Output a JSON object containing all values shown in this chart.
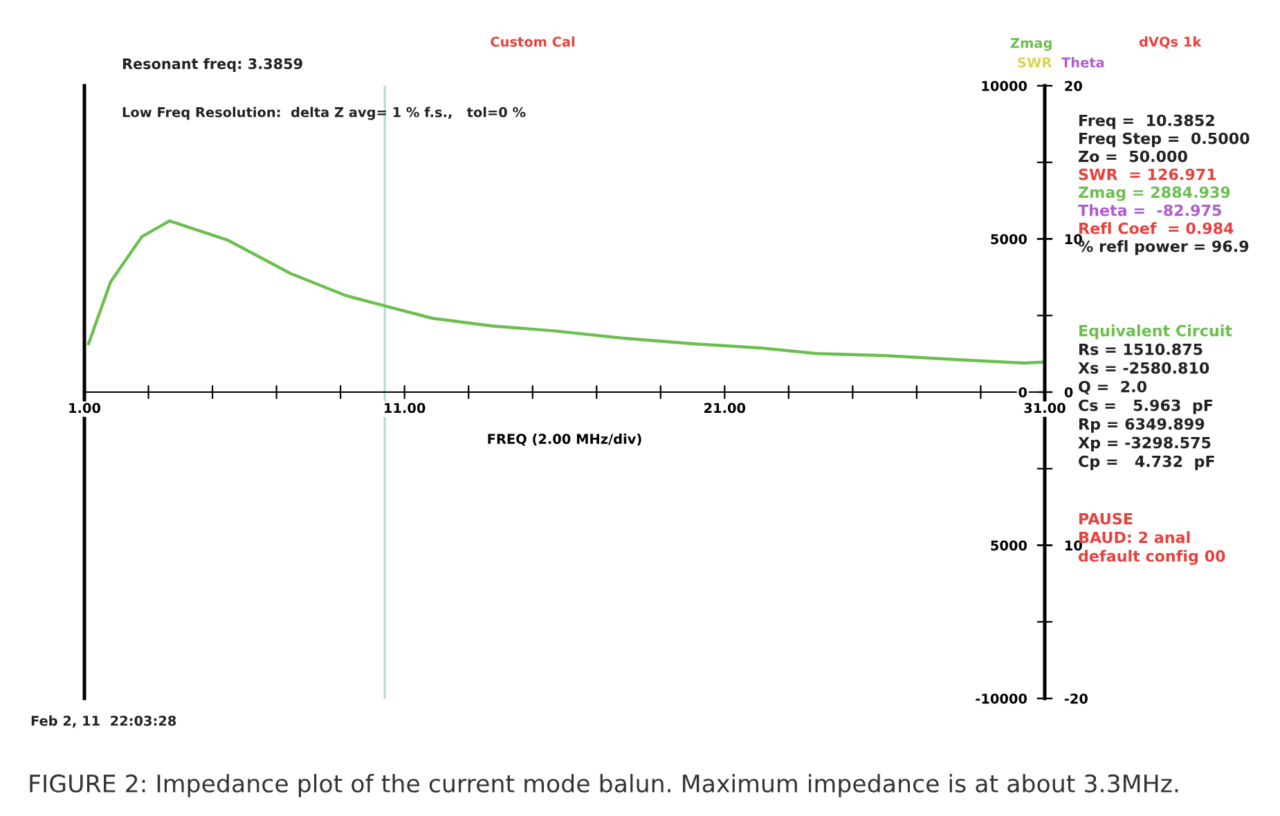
{
  "chart_data": {
    "type": "line",
    "xlabel": "FREQ (2.00 MHz/div)",
    "x": [
      1.13,
      1.82,
      2.79,
      3.66,
      5.5,
      7.44,
      9.17,
      10.47,
      11.87,
      13.71,
      15.66,
      17.82,
      19.98,
      22.14,
      23.87,
      26.03,
      28.63,
      30.36,
      31.0
    ],
    "series": [
      {
        "name": "Zmag",
        "color": "#6cbf4f",
        "values": [
          1580,
          3600,
          5070,
          5590,
          4950,
          3870,
          3150,
          2790,
          2410,
          2160,
          2000,
          1760,
          1580,
          1440,
          1260,
          1190,
          1040,
          950,
          980
        ]
      }
    ],
    "xlim": [
      1,
      31
    ],
    "xticks": [
      {
        "value": 1,
        "label": "1.00"
      },
      {
        "value": 3,
        "label": null
      },
      {
        "value": 5,
        "label": null
      },
      {
        "value": 7,
        "label": null
      },
      {
        "value": 9,
        "label": null
      },
      {
        "value": 11,
        "label": "11.00"
      },
      {
        "value": 13,
        "label": null
      },
      {
        "value": 15,
        "label": null
      },
      {
        "value": 17,
        "label": null
      },
      {
        "value": 19,
        "label": null
      },
      {
        "value": 21,
        "label": "21.00"
      },
      {
        "value": 23,
        "label": null
      },
      {
        "value": 25,
        "label": null
      },
      {
        "value": 27,
        "label": null
      },
      {
        "value": 29,
        "label": null
      },
      {
        "value": 31,
        "label": "31.00"
      }
    ],
    "ylim": [
      -10000,
      10000
    ],
    "yticks": [
      -10000,
      {
        "value": -7500,
        "label": null
      },
      {
        "value": -5000,
        "label": "5000"
      },
      {
        "value": -2500,
        "label": null
      },
      {
        "value": 0,
        "label": "0"
      },
      {
        "value": 2500,
        "label": null
      },
      5000,
      {
        "value": 7500,
        "label": null
      },
      10000
    ],
    "y2lim": [
      -20,
      20
    ],
    "y2ticks": [
      -20,
      {
        "value": -10,
        "label": "10"
      },
      0,
      10,
      20
    ],
    "ref_lines": [
      {
        "axis": "x",
        "value": 10.3852,
        "color": "#b9dcdc"
      }
    ],
    "grid": false,
    "legend": false,
    "marker": "none",
    "line_style": "solid",
    "annotations": [
      "Custom Cal",
      "Resonant freq: 3.3859",
      "Low Freq Resolution:  delta Z avg= 1 % f.s.,   tol=0 %",
      "SWR",
      "Theta",
      "dVQs 1k",
      "Freq =  10.3852",
      "Freq Step =  0.5000",
      "Zo =  50.000",
      "SWR  = 126.971",
      "Zmag = 2884.939",
      "Theta =  -82.975",
      "Refl Coef  = 0.984",
      "% refl power = 96.9",
      "Equivalent Circuit",
      "Rs = 1510.875",
      "Xs = -2580.810",
      "Q =  2.0",
      "Cs =   5.963  pF",
      "Rp = 6349.899",
      "Xp = -3298.575",
      "Cp =   4.732  pF",
      "PAUSE",
      "BAUD: 2 anal",
      "default config 00",
      "Feb 2, 11  22:03:28",
      "FIGURE 2: Impedance plot of the current mode balun. Maximum impedance is at about 3.3MHz."
    ]
  }
}
